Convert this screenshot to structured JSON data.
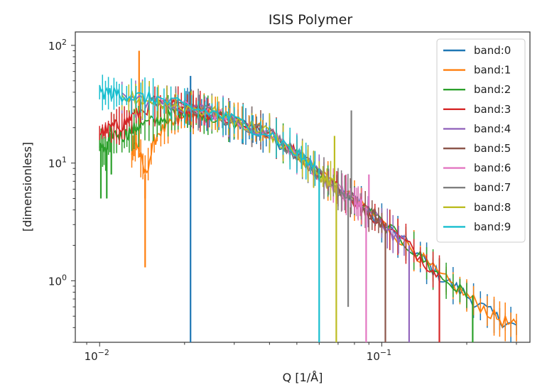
{
  "chart_data": {
    "type": "line",
    "title": "ISIS Polymer",
    "xlabel": "Q [1/Å]",
    "ylabel": "[dimensionless]",
    "xscale": "log",
    "yscale": "log",
    "xlim": [
      0.0082,
      0.335
    ],
    "ylim": [
      0.3,
      130
    ],
    "x_ticks": [
      {
        "value": 0.01,
        "base": "10",
        "exp": "−2"
      },
      {
        "value": 0.1,
        "base": "10",
        "exp": "−1"
      }
    ],
    "y_ticks": [
      {
        "value": 1,
        "base": "10",
        "exp": "0"
      },
      {
        "value": 10,
        "base": "10",
        "exp": "1"
      },
      {
        "value": 100,
        "base": "10",
        "exp": "2"
      }
    ],
    "grid": false,
    "legend": "top-right",
    "series": [
      {
        "name": "band:0",
        "color": "#1f77b4",
        "x": [
          0.02,
          0.021,
          0.023,
          0.025,
          0.028,
          0.032,
          0.036,
          0.04,
          0.05,
          0.06,
          0.08,
          0.1,
          0.13,
          0.16,
          0.2,
          0.25,
          0.3
        ],
        "y": [
          30,
          29,
          27,
          25,
          23,
          21,
          19,
          17,
          12,
          8,
          4.8,
          3.1,
          1.8,
          1.1,
          0.75,
          0.5,
          0.4
        ],
        "spikes": [
          {
            "x": 0.021,
            "y": 55
          },
          {
            "x": 0.021,
            "y": 0.3
          }
        ]
      },
      {
        "name": "band:1",
        "color": "#ff7f0e",
        "x": [
          0.013,
          0.0135,
          0.0145,
          0.016,
          0.018,
          0.02,
          0.022,
          0.025,
          0.028,
          0.032,
          0.04,
          0.05,
          0.06,
          0.08,
          0.1,
          0.13,
          0.16,
          0.2,
          0.25,
          0.3
        ],
        "y": [
          13,
          15,
          8,
          18,
          21,
          24,
          26,
          27,
          25,
          22,
          18,
          12,
          8,
          4.8,
          3.1,
          1.8,
          1.1,
          0.75,
          0.5,
          0.4
        ],
        "spikes": [
          {
            "x": 0.0138,
            "y": 90
          },
          {
            "x": 0.0145,
            "y": 1.3
          },
          {
            "x": 0.0145,
            "y": 5
          }
        ]
      },
      {
        "name": "band:2",
        "color": "#2ca02c",
        "x": [
          0.01,
          0.0105,
          0.011,
          0.012,
          0.013,
          0.014,
          0.016,
          0.018,
          0.02,
          0.022,
          0.025,
          0.03,
          0.04,
          0.05,
          0.06,
          0.08,
          0.1,
          0.13,
          0.16,
          0.2
        ],
        "y": [
          15,
          12,
          18,
          17,
          19,
          21,
          23,
          26,
          28,
          27,
          25,
          22,
          18,
          12,
          8,
          4.8,
          3.1,
          1.8,
          1.1,
          0.75
        ],
        "spikes": [
          {
            "x": 0.0101,
            "y": 5
          },
          {
            "x": 0.0106,
            "y": 5
          },
          {
            "x": 0.011,
            "y": 8
          },
          {
            "x": 0.21,
            "y": 0.3
          }
        ]
      },
      {
        "name": "band:3",
        "color": "#d62728",
        "x": [
          0.01,
          0.011,
          0.012,
          0.013,
          0.015,
          0.018,
          0.02,
          0.022,
          0.025,
          0.03,
          0.04,
          0.05,
          0.06,
          0.08,
          0.1,
          0.13,
          0.16
        ],
        "y": [
          18,
          20,
          21,
          25,
          30,
          31,
          30,
          28,
          26,
          23,
          18,
          12,
          8,
          4.8,
          3.1,
          1.8,
          1.1
        ],
        "spikes": [
          {
            "x": 0.16,
            "y": 0.3
          }
        ]
      },
      {
        "name": "band:4",
        "color": "#9467bd",
        "x": [
          0.012,
          0.015,
          0.02,
          0.025,
          0.03,
          0.04,
          0.05,
          0.06,
          0.07,
          0.08,
          0.1,
          0.12
        ],
        "y": [
          36,
          34,
          30,
          27,
          23,
          18,
          12,
          8,
          6,
          4.8,
          3.1,
          2.0
        ],
        "spikes": [
          {
            "x": 0.125,
            "y": 0.3
          }
        ]
      },
      {
        "name": "band:5",
        "color": "#8c564b",
        "x": [
          0.015,
          0.02,
          0.025,
          0.03,
          0.04,
          0.05,
          0.06,
          0.07,
          0.08,
          0.09,
          0.1
        ],
        "y": [
          34,
          30,
          27,
          23,
          18,
          12,
          8,
          6,
          4.8,
          3.8,
          3.1
        ],
        "spikes": [
          {
            "x": 0.103,
            "y": 0.3
          }
        ]
      },
      {
        "name": "band:6",
        "color": "#e377c2",
        "x": [
          0.015,
          0.02,
          0.025,
          0.03,
          0.04,
          0.05,
          0.06,
          0.07,
          0.08,
          0.085
        ],
        "y": [
          34,
          30,
          27,
          23,
          18,
          12,
          8,
          6,
          4.8,
          4.3
        ],
        "spikes": [
          {
            "x": 0.088,
            "y": 0.3
          },
          {
            "x": 0.09,
            "y": 8
          }
        ]
      },
      {
        "name": "band:7",
        "color": "#7f7f7f",
        "x": [
          0.015,
          0.02,
          0.025,
          0.03,
          0.04,
          0.05,
          0.06,
          0.07,
          0.078
        ],
        "y": [
          34,
          30,
          27,
          23,
          18,
          12,
          8,
          6,
          5.2
        ],
        "spikes": [
          {
            "x": 0.078,
            "y": 28
          },
          {
            "x": 0.076,
            "y": 0.6
          }
        ]
      },
      {
        "name": "band:8",
        "color": "#bcbd22",
        "x": [
          0.012,
          0.015,
          0.02,
          0.025,
          0.03,
          0.04,
          0.05,
          0.06,
          0.068
        ],
        "y": [
          36,
          34,
          30,
          27,
          23,
          18,
          12,
          8,
          6.8
        ],
        "spikes": [
          {
            "x": 0.068,
            "y": 17
          },
          {
            "x": 0.069,
            "y": 0.3
          }
        ]
      },
      {
        "name": "band:9",
        "color": "#17becf",
        "x": [
          0.01,
          0.011,
          0.012,
          0.014,
          0.016,
          0.02,
          0.025,
          0.03,
          0.04,
          0.05,
          0.058
        ],
        "y": [
          40,
          39,
          38,
          36,
          35,
          30,
          27,
          23,
          18,
          12,
          9
        ],
        "spikes": [
          {
            "x": 0.06,
            "y": 0.3
          },
          {
            "x": 0.053,
            "y": 12
          }
        ]
      }
    ]
  }
}
